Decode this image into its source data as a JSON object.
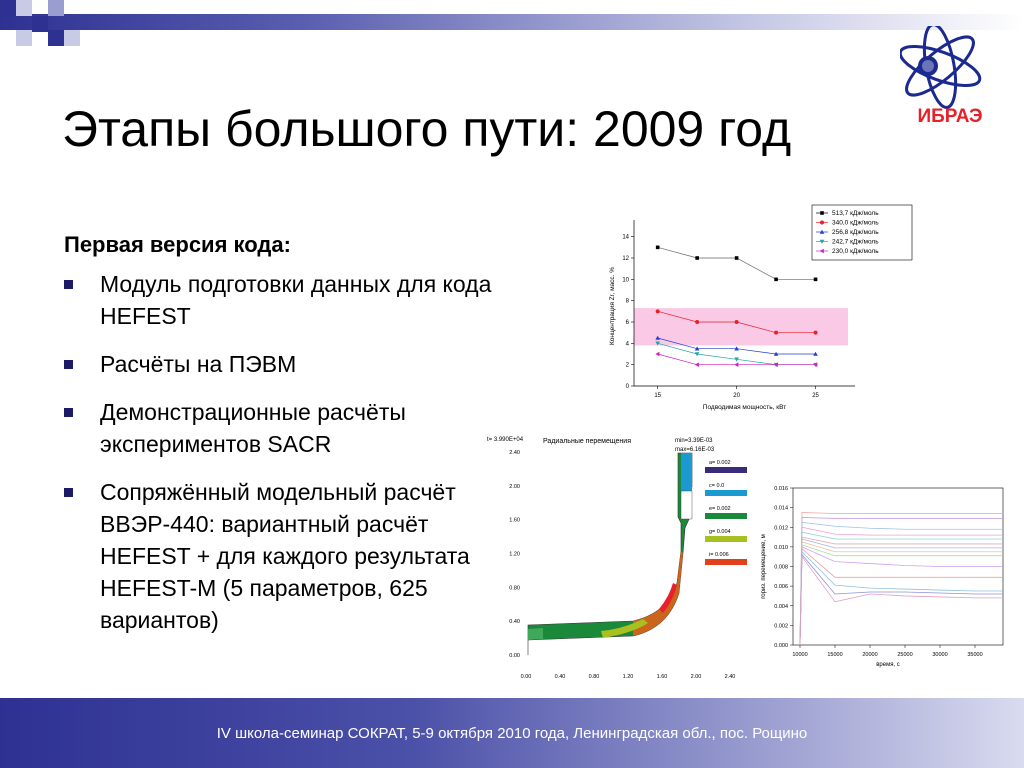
{
  "slide": {
    "title": "Этапы большого пути: 2009 год",
    "logo_text": "ИБРАЭ",
    "subheading": "Первая версия кода:",
    "bullets": [
      "Модуль подготовки данных для кода HEFEST",
      "Расчёты на ПЭВМ",
      "Демонстрационные расчёты экспериментов SACR",
      "Сопряжённый модельный расчёт ВВЭР-440: вариантный расчёт HEFEST + для каждого результата HEFEST-M (5 параметров, 625 вариантов)"
    ],
    "footer": "IV школа-семинар СОКРАТ, 5-9 октября 2010 года, Ленинградская обл., пос. Рощино"
  },
  "colors": {
    "accent": "#2e3192",
    "bullet": "#1a1a66",
    "logo_red": "#e8202a",
    "logo_blue": "#1b2a8f"
  },
  "chart_data": [
    {
      "type": "line",
      "xlabel": "Подводимая мощность, кВт",
      "ylabel": "Концентрация Zr, масс. %",
      "x": [
        15,
        17.5,
        20,
        22.5,
        25
      ],
      "xticks": [
        "15",
        "20",
        "25"
      ],
      "xlim": [
        13.5,
        27.5
      ],
      "ylim": [
        0,
        15
      ],
      "yticks": [
        "0",
        "2",
        "4",
        "6",
        "8",
        "10",
        "12",
        "14"
      ],
      "highlight_band": [
        3.8,
        7.3
      ],
      "legend_position": "top-right",
      "series": [
        {
          "name": "513,7 кДж/моль",
          "values": [
            13,
            12,
            12,
            10,
            10
          ],
          "color": "#000000",
          "marker": "square"
        },
        {
          "name": "340,0 кДж/моль",
          "values": [
            7,
            6,
            6,
            5,
            5
          ],
          "color": "#e8202a",
          "marker": "circle"
        },
        {
          "name": "256,8 кДж/моль",
          "values": [
            4.5,
            3.5,
            3.5,
            3,
            3
          ],
          "color": "#1f3fd0",
          "marker": "triangle-up"
        },
        {
          "name": "242,7 кДж/моль",
          "values": [
            4,
            3,
            2.5,
            2,
            2
          ],
          "color": "#1fa7a7",
          "marker": "triangle-down"
        },
        {
          "name": "230,0 кДж/моль",
          "values": [
            3,
            2,
            2,
            2,
            2
          ],
          "color": "#d020c0",
          "marker": "triangle-left"
        }
      ]
    },
    {
      "type": "contour",
      "title": "Радиальные перемещения",
      "time_label": "t=  3.990E+04",
      "min_label": "min=3.39E-03",
      "max_label": "max=6.16E-03",
      "xticks": [
        "0.00",
        "0.40",
        "0.80",
        "1.20",
        "1.60",
        "2.00",
        "2.40"
      ],
      "yticks": [
        "0.00",
        "0.40",
        "0.80",
        "1.20",
        "1.60",
        "2.00",
        "2.40"
      ],
      "legend": [
        {
          "label": "a=  0.002",
          "color": "#3a2a7a"
        },
        {
          "label": "c=  0.0",
          "color": "#1a9ad0"
        },
        {
          "label": "e=  0.002",
          "color": "#1a8a3a"
        },
        {
          "label": "g=  0.004",
          "color": "#a8c020"
        },
        {
          "label": "i=  0.006",
          "color": "#e0401a"
        }
      ]
    },
    {
      "type": "line",
      "xlabel": "время, с",
      "ylabel": "гориз. перемещение, м",
      "xticks": [
        "10000",
        "15000",
        "20000",
        "25000",
        "30000",
        "35000"
      ],
      "xlim": [
        9000,
        39000
      ],
      "yticks": [
        "0.000",
        "0.002",
        "0.004",
        "0.006",
        "0.008",
        "0.010",
        "0.012",
        "0.014",
        "0.016"
      ],
      "ylim": [
        0,
        0.016
      ],
      "series": [
        {
          "values": [
            0.0135,
            0.0134,
            0.0134,
            0.0134,
            0.0134,
            0.0134
          ],
          "color": "#f4a0a0"
        },
        {
          "values": [
            0.013,
            0.0129,
            0.0129,
            0.0129,
            0.0129,
            0.0129
          ],
          "color": "#c8a0e0"
        },
        {
          "values": [
            0.0125,
            0.0121,
            0.0119,
            0.0118,
            0.0118,
            0.0118
          ],
          "color": "#a0c0f0"
        },
        {
          "values": [
            0.012,
            0.0113,
            0.0112,
            0.0112,
            0.0112,
            0.0112
          ],
          "color": "#f0a0d0"
        },
        {
          "values": [
            0.0115,
            0.0108,
            0.0108,
            0.0108,
            0.0108,
            0.0108
          ],
          "color": "#90d0d0"
        },
        {
          "values": [
            0.011,
            0.0103,
            0.0103,
            0.0103,
            0.0103,
            0.0103
          ],
          "color": "#e0b0b0"
        },
        {
          "values": [
            0.0108,
            0.0099,
            0.0099,
            0.0099,
            0.0099,
            0.0099
          ],
          "color": "#b0b0e0"
        },
        {
          "values": [
            0.0105,
            0.0095,
            0.0095,
            0.0095,
            0.0095,
            0.0095
          ],
          "color": "#f0c0a0"
        },
        {
          "values": [
            0.0102,
            0.0091,
            0.0091,
            0.0091,
            0.0091,
            0.0091
          ],
          "color": "#a0e0a0"
        },
        {
          "values": [
            0.01,
            0.0085,
            0.0083,
            0.0081,
            0.008,
            0.008
          ],
          "color": "#d0a0f0"
        },
        {
          "values": [
            0.0098,
            0.0069,
            0.0069,
            0.0069,
            0.0069,
            0.0069
          ],
          "color": "#f0a0a0"
        },
        {
          "values": [
            0.0095,
            0.0061,
            0.0058,
            0.0057,
            0.0056,
            0.0055
          ],
          "color": "#90c0e0"
        },
        {
          "values": [
            0.0092,
            0.0052,
            0.0054,
            0.0054,
            0.0053,
            0.0052
          ],
          "color": "#9090e0"
        },
        {
          "values": [
            0.009,
            0.0044,
            0.0052,
            0.005,
            0.0049,
            0.0048
          ],
          "color": "#e0a0c0"
        }
      ]
    }
  ]
}
